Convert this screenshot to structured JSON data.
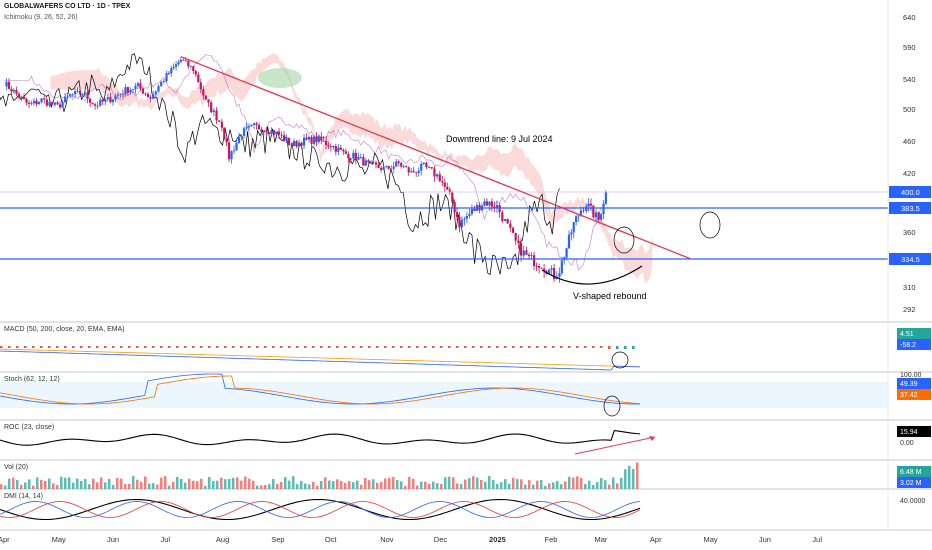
{
  "chart_data": {
    "type": "candlestick",
    "symbol_title": "GLOBALWAFERS CO LTD · 1D · TPEX",
    "indicator_label": "Ichimoku (9, 26, 52, 26)",
    "annotations": {
      "downtrend": "Downtrend line: 9 Jul 2024",
      "rebound": "V-shaped rebound"
    },
    "y_axis_ticks": [
      640,
      590,
      540,
      500,
      460,
      420,
      360,
      310,
      292
    ],
    "ylim": [
      292,
      650
    ],
    "x_axis_ticks": [
      "Apr",
      "May",
      "Jun",
      "Jul",
      "Aug",
      "Sep",
      "Oct",
      "Nov",
      "Dec",
      "2025",
      "Feb",
      "Mar",
      "Apr",
      "May",
      "Jun",
      "Jul"
    ],
    "price_labels": {
      "last": "400.0",
      "resistance": "383.5",
      "support": "334.5"
    },
    "levels": {
      "resistance": 383.5,
      "support": 334.5
    },
    "trendline": {
      "start": [
        "2024-07-09",
        575
      ],
      "end": [
        "2025-04-20",
        335
      ]
    },
    "close_path": [
      [
        "2024-04-01",
        535
      ],
      [
        "2024-04-08",
        520
      ],
      [
        "2024-04-15",
        505
      ],
      [
        "2024-04-22",
        512
      ],
      [
        "2024-05-01",
        503
      ],
      [
        "2024-05-08",
        518
      ],
      [
        "2024-05-15",
        522
      ],
      [
        "2024-05-22",
        505
      ],
      [
        "2024-06-01",
        515
      ],
      [
        "2024-06-08",
        525
      ],
      [
        "2024-06-15",
        530
      ],
      [
        "2024-06-22",
        515
      ],
      [
        "2024-07-01",
        545
      ],
      [
        "2024-07-09",
        570
      ],
      [
        "2024-07-16",
        555
      ],
      [
        "2024-07-23",
        510
      ],
      [
        "2024-08-01",
        480
      ],
      [
        "2024-08-05",
        440
      ],
      [
        "2024-08-12",
        470
      ],
      [
        "2024-08-19",
        478
      ],
      [
        "2024-08-26",
        475
      ],
      [
        "2024-09-02",
        468
      ],
      [
        "2024-09-09",
        455
      ],
      [
        "2024-09-16",
        460
      ],
      [
        "2024-09-23",
        462
      ],
      [
        "2024-10-01",
        455
      ],
      [
        "2024-10-08",
        445
      ],
      [
        "2024-10-15",
        440
      ],
      [
        "2024-10-22",
        430
      ],
      [
        "2024-11-01",
        425
      ],
      [
        "2024-11-08",
        432
      ],
      [
        "2024-11-15",
        420
      ],
      [
        "2024-11-22",
        428
      ],
      [
        "2024-12-01",
        415
      ],
      [
        "2024-12-08",
        390
      ],
      [
        "2024-12-12",
        368
      ],
      [
        "2024-12-19",
        380
      ],
      [
        "2024-12-26",
        390
      ],
      [
        "2025-01-02",
        385
      ],
      [
        "2025-01-08",
        365
      ],
      [
        "2025-01-14",
        345
      ],
      [
        "2025-01-20",
        335
      ],
      [
        "2025-01-27",
        330
      ],
      [
        "2025-02-03",
        320
      ],
      [
        "2025-02-06",
        325
      ],
      [
        "2025-02-10",
        345
      ],
      [
        "2025-02-14",
        368
      ],
      [
        "2025-02-18",
        382
      ],
      [
        "2025-02-21",
        388
      ],
      [
        "2025-02-25",
        378
      ],
      [
        "2025-02-28",
        372
      ],
      [
        "2025-03-04",
        400
      ]
    ],
    "indicators": [
      {
        "name": "MACD (50, 200, close, 20, EMA, EMA)",
        "values": [
          "4.51",
          "-58.2"
        ],
        "colors": [
          "#26a69a",
          "#2962ff"
        ]
      },
      {
        "name": "Stoch (62, 12, 12)",
        "axis": "100.00",
        "values": [
          "49.39",
          "37.42"
        ],
        "colors": [
          "#2962ff",
          "#ff6d00"
        ]
      },
      {
        "name": "ROC (23, close)",
        "values": [
          "15.94",
          "0.00"
        ],
        "colors": [
          "#000000",
          "#ffffff"
        ]
      },
      {
        "name": "Vol (20)",
        "values": [
          "6.48 M",
          "3.02 M"
        ],
        "colors": [
          "#26a69a",
          "#2962ff"
        ]
      },
      {
        "name": "DMI (14, 14)",
        "values": [
          "40.0000"
        ],
        "colors": [
          "#ffffff"
        ]
      }
    ],
    "colors": {
      "up": "#2962ff",
      "down": "#c2185b",
      "trendline": "#e53950",
      "level": "#2962ff",
      "cloud_bear": "#f8bbbb",
      "cloud_bull": "#a5d6a7"
    }
  }
}
